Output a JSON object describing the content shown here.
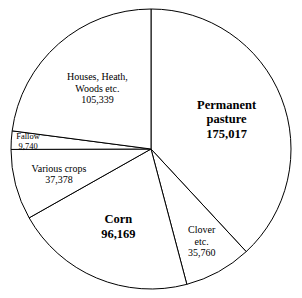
{
  "chart_data": {
    "type": "pie",
    "categories": [
      "Permanent\npasture",
      "Clover\netc.",
      "Corn",
      "Various crops",
      "Fallow",
      "Houses, Heath,\nWoods etc."
    ],
    "values": [
      175017,
      35760,
      96169,
      37378,
      9740,
      105339
    ],
    "value_labels": [
      "175,017",
      "35,760",
      "96,169",
      "37,378",
      "9,740",
      "105,339"
    ],
    "data_labels": true,
    "colors": [
      "#ffffff",
      "#ffffff",
      "#ffffff",
      "#ffffff",
      "#ffffff",
      "#ffffff"
    ]
  }
}
